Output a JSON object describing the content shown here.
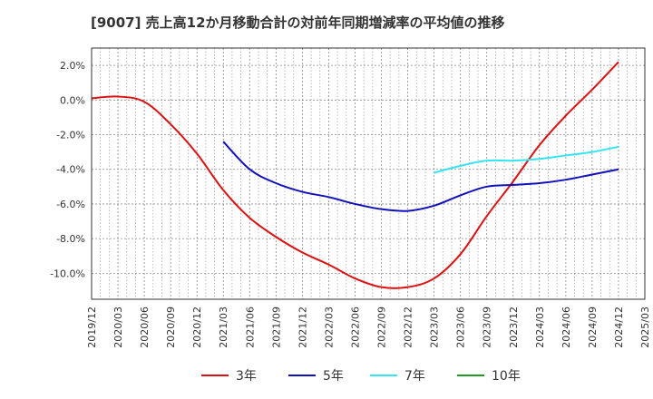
{
  "chart_data": {
    "type": "line",
    "title": "[9007]  売上高12か月移動合計の対前年同期増減率の平均値の推移",
    "x_categories": [
      "2019/12",
      "2020/03",
      "2020/06",
      "2020/09",
      "2020/12",
      "2021/03",
      "2021/06",
      "2021/09",
      "2021/12",
      "2022/03",
      "2022/06",
      "2022/09",
      "2022/12",
      "2023/03",
      "2023/06",
      "2023/09",
      "2023/12",
      "2024/03",
      "2024/06",
      "2024/09",
      "2024/12",
      "2025/03"
    ],
    "y_ticks": [
      2.0,
      0.0,
      -2.0,
      -4.0,
      -6.0,
      -8.0,
      -10.0
    ],
    "y_tick_labels": [
      "2.0%",
      "0.0%",
      "-2.0%",
      "-4.0%",
      "-6.0%",
      "-8.0%",
      "-10.0%"
    ],
    "ylim": [
      -11.5,
      3.0
    ],
    "grid": true,
    "legend_position": "bottom",
    "series": [
      {
        "name": "3年",
        "color": "#dd1111",
        "x": [
          "2019/12",
          "2020/03",
          "2020/06",
          "2020/09",
          "2020/12",
          "2021/03",
          "2021/06",
          "2021/09",
          "2021/12",
          "2022/03",
          "2022/06",
          "2022/09",
          "2022/12",
          "2023/03",
          "2023/06",
          "2023/09",
          "2023/12",
          "2024/03",
          "2024/06",
          "2024/09",
          "2024/12"
        ],
        "values": [
          0.1,
          0.2,
          -0.1,
          -1.4,
          -3.1,
          -5.2,
          -6.8,
          -7.9,
          -8.8,
          -9.5,
          -10.3,
          -10.8,
          -10.8,
          -10.3,
          -8.9,
          -6.7,
          -4.7,
          -2.6,
          -0.9,
          0.6,
          2.2
        ]
      },
      {
        "name": "5年",
        "color": "#1111bb",
        "x": [
          "2021/03",
          "2021/06",
          "2021/09",
          "2021/12",
          "2022/03",
          "2022/06",
          "2022/09",
          "2022/12",
          "2023/03",
          "2023/06",
          "2023/09",
          "2023/12",
          "2024/03",
          "2024/06",
          "2024/09",
          "2024/12"
        ],
        "values": [
          -2.4,
          -4.0,
          -4.8,
          -5.3,
          -5.6,
          -6.0,
          -6.3,
          -6.4,
          -6.1,
          -5.5,
          -5.0,
          -4.9,
          -4.8,
          -4.6,
          -4.3,
          -4.0
        ]
      },
      {
        "name": "7年",
        "color": "#33e5f2",
        "x": [
          "2023/03",
          "2023/06",
          "2023/09",
          "2023/12",
          "2024/03",
          "2024/06",
          "2024/09",
          "2024/12"
        ],
        "values": [
          -4.2,
          -3.8,
          -3.5,
          -3.5,
          -3.4,
          -3.2,
          -3.0,
          -2.7
        ]
      },
      {
        "name": "10年",
        "color": "#229922",
        "x": [],
        "values": []
      }
    ]
  }
}
